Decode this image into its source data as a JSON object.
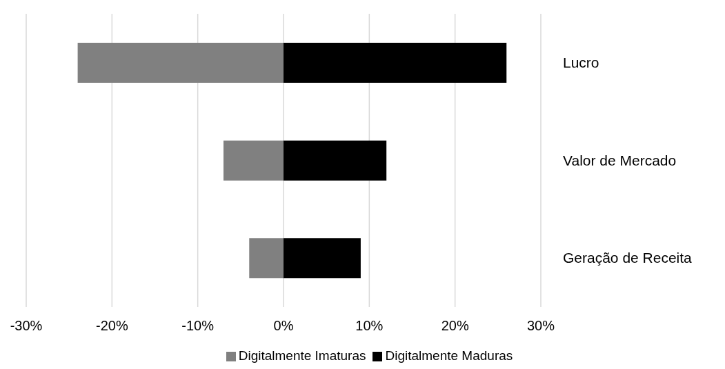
{
  "chart_data": {
    "type": "bar",
    "orientation": "horizontal",
    "stacked": true,
    "categories": [
      "Lucro",
      "Valor de Mercado",
      "Geração de Receita"
    ],
    "series": [
      {
        "name": "Digitalmente Imaturas",
        "color": "#808080",
        "values": [
          -24,
          -7,
          -4
        ]
      },
      {
        "name": "Digitalmente Maduras",
        "color": "#000000",
        "values": [
          26,
          12,
          9
        ]
      }
    ],
    "xlim": [
      -30,
      30
    ],
    "xticks": [
      {
        "value": -30,
        "label": "-30%"
      },
      {
        "value": -20,
        "label": "-20%"
      },
      {
        "value": -10,
        "label": "-10%"
      },
      {
        "value": 0,
        "label": "0%"
      },
      {
        "value": 10,
        "label": "10%"
      },
      {
        "value": 20,
        "label": "20%"
      },
      {
        "value": 30,
        "label": "30%"
      }
    ],
    "grid": "x",
    "legend": "bottom"
  }
}
